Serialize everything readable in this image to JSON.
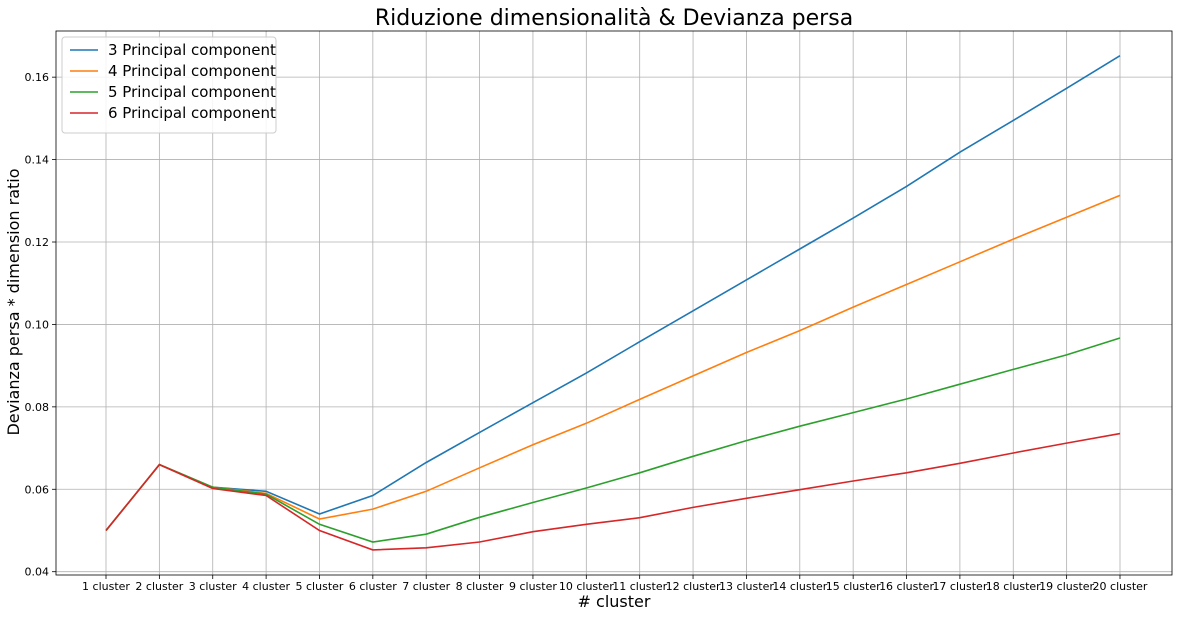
{
  "chart_data": {
    "type": "line",
    "title": "Riduzione dimensionalità & Devianza persa",
    "xlabel": "# cluster",
    "ylabel": "Devianza persa * dimension ratio",
    "categories": [
      "1 cluster",
      "2 cluster",
      "3 cluster",
      "4 cluster",
      "5 cluster",
      "6 cluster",
      "7 cluster",
      "8 cluster",
      "9 cluster",
      "10 cluster",
      "11 cluster",
      "12 cluster",
      "13 cluster",
      "14 cluster",
      "15 cluster",
      "16 cluster",
      "17 cluster",
      "18 cluster",
      "19 cluster",
      "20 cluster"
    ],
    "ylim": [
      0.0392,
      0.1712
    ],
    "yticks": [
      0.04,
      0.06,
      0.08,
      0.1,
      0.12,
      0.14,
      0.16
    ],
    "ytick_labels": [
      "0.04",
      "0.06",
      "0.08",
      "0.10",
      "0.12",
      "0.14",
      "0.16"
    ],
    "grid": true,
    "legend_position": "top-left",
    "series": [
      {
        "name": "3 Principal component",
        "color": "#1f77b4",
        "values": [
          0.05,
          0.066,
          0.0605,
          0.0595,
          0.054,
          0.0585,
          0.0665,
          0.0738,
          0.081,
          0.0882,
          0.0958,
          0.1033,
          0.1108,
          0.1183,
          0.1258,
          0.1335,
          0.1418,
          0.1495,
          0.1573,
          0.1652
        ]
      },
      {
        "name": "4 Principal component",
        "color": "#ff7f0e",
        "values": [
          0.05,
          0.066,
          0.0605,
          0.059,
          0.0528,
          0.0552,
          0.0595,
          0.0652,
          0.0708,
          0.076,
          0.0818,
          0.0875,
          0.0932,
          0.0985,
          0.1042,
          0.1097,
          0.1152,
          0.1207,
          0.126,
          0.1313
        ]
      },
      {
        "name": "5 Principal component",
        "color": "#2ca02c",
        "values": [
          0.05,
          0.066,
          0.0605,
          0.0588,
          0.0515,
          0.0472,
          0.0491,
          0.0532,
          0.0568,
          0.0603,
          0.064,
          0.068,
          0.0718,
          0.0753,
          0.0786,
          0.0819,
          0.0855,
          0.0891,
          0.0926,
          0.0967
        ]
      },
      {
        "name": "6 Principal component",
        "color": "#d62728",
        "values": [
          0.05,
          0.066,
          0.0602,
          0.0585,
          0.05,
          0.0453,
          0.0458,
          0.0472,
          0.0497,
          0.0515,
          0.0531,
          0.0556,
          0.0578,
          0.0599,
          0.062,
          0.064,
          0.0663,
          0.0688,
          0.0712,
          0.0735
        ]
      }
    ]
  }
}
